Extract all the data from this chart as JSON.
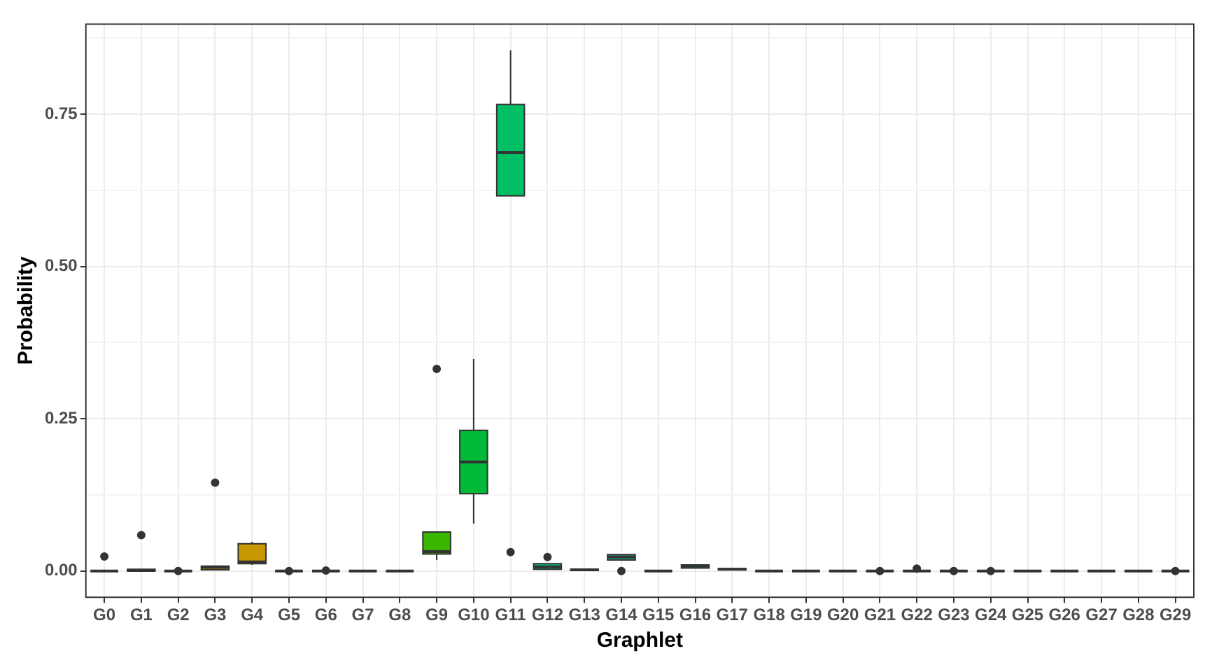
{
  "chart_data": {
    "type": "box",
    "xlabel": "Graphlet",
    "ylabel": "Probability",
    "categories": [
      "G0",
      "G1",
      "G2",
      "G3",
      "G4",
      "G5",
      "G6",
      "G7",
      "G8",
      "G9",
      "G10",
      "G11",
      "G12",
      "G13",
      "G14",
      "G15",
      "G16",
      "G17",
      "G18",
      "G19",
      "G20",
      "G21",
      "G22",
      "G23",
      "G24",
      "G25",
      "G26",
      "G27",
      "G28",
      "G29"
    ],
    "colors": [
      "#333333",
      "#f27d52",
      "#333333",
      "#de8c00",
      "#c99800",
      "#333333",
      "#333333",
      "#333333",
      "#333333",
      "#39b600",
      "#00ba38",
      "#00bf64",
      "#00c08b",
      "#00c0af",
      "#1fa589",
      "#333333",
      "#00b4f0",
      "#00a9ff",
      "#333333",
      "#333333",
      "#333333",
      "#333333",
      "#333333",
      "#333333",
      "#333333",
      "#333333",
      "#333333",
      "#333333",
      "#333333",
      "#333333"
    ],
    "boxes": [
      {
        "low": 0,
        "q1": 0,
        "median": 0,
        "q3": 0,
        "high": 0,
        "outliers": [
          0.024
        ]
      },
      {
        "low": 0,
        "q1": 0,
        "median": 0.001,
        "q3": 0.003,
        "high": 0.003,
        "outliers": [
          0.059
        ]
      },
      {
        "low": 0,
        "q1": 0,
        "median": 0,
        "q3": 0,
        "high": 0,
        "outliers": [
          0
        ]
      },
      {
        "low": 0.001,
        "q1": 0.002,
        "median": 0.006,
        "q3": 0.008,
        "high": 0.008,
        "outliers": [
          0.145
        ]
      },
      {
        "low": 0.01,
        "q1": 0.012,
        "median": 0.015,
        "q3": 0.045,
        "high": 0.048
      },
      {
        "low": 0,
        "q1": 0,
        "median": 0,
        "q3": 0,
        "high": 0,
        "outliers": [
          0
        ]
      },
      {
        "low": 0,
        "q1": 0,
        "median": 0,
        "q3": 0,
        "high": 0,
        "outliers": [
          0.001
        ]
      },
      {
        "low": 0,
        "q1": 0,
        "median": 0,
        "q3": 0,
        "high": 0
      },
      {
        "low": 0,
        "q1": 0,
        "median": 0,
        "q3": 0,
        "high": 0
      },
      {
        "low": 0.018,
        "q1": 0.028,
        "median": 0.032,
        "q3": 0.064,
        "high": 0.064,
        "outliers": [
          0.332
        ]
      },
      {
        "low": 0.078,
        "q1": 0.127,
        "median": 0.179,
        "q3": 0.231,
        "high": 0.348
      },
      {
        "low": 0.616,
        "q1": 0.616,
        "median": 0.687,
        "q3": 0.766,
        "high": 0.855,
        "outliers": [
          0.031
        ]
      },
      {
        "low": 0.003,
        "q1": 0.003,
        "median": 0.007,
        "q3": 0.012,
        "high": 0.012,
        "outliers": [
          0.023
        ]
      },
      {
        "low": 0.001,
        "q1": 0.001,
        "median": 0.002,
        "q3": 0.003,
        "high": 0.003
      },
      {
        "low": 0.018,
        "q1": 0.018,
        "median": 0.023,
        "q3": 0.027,
        "high": 0.027,
        "outliers": [
          0
        ]
      },
      {
        "low": 0,
        "q1": 0,
        "median": 0,
        "q3": 0,
        "high": 0
      },
      {
        "low": 0.005,
        "q1": 0.005,
        "median": 0.008,
        "q3": 0.01,
        "high": 0.01
      },
      {
        "low": 0.002,
        "q1": 0.002,
        "median": 0.003,
        "q3": 0.004,
        "high": 0.004
      },
      {
        "low": 0,
        "q1": 0,
        "median": 0,
        "q3": 0,
        "high": 0
      },
      {
        "low": 0,
        "q1": 0,
        "median": 0,
        "q3": 0,
        "high": 0
      },
      {
        "low": 0,
        "q1": 0,
        "median": 0,
        "q3": 0,
        "high": 0
      },
      {
        "low": 0,
        "q1": 0,
        "median": 0,
        "q3": 0,
        "high": 0,
        "outliers": [
          0
        ]
      },
      {
        "low": 0,
        "q1": 0,
        "median": 0,
        "q3": 0,
        "high": 0,
        "outliers": [
          0.004
        ]
      },
      {
        "low": 0,
        "q1": 0,
        "median": 0,
        "q3": 0,
        "high": 0,
        "outliers": [
          0
        ]
      },
      {
        "low": 0,
        "q1": 0,
        "median": 0,
        "q3": 0,
        "high": 0,
        "outliers": [
          0
        ]
      },
      {
        "low": 0,
        "q1": 0,
        "median": 0,
        "q3": 0,
        "high": 0
      },
      {
        "low": 0,
        "q1": 0,
        "median": 0,
        "q3": 0,
        "high": 0
      },
      {
        "low": 0,
        "q1": 0,
        "median": 0,
        "q3": 0,
        "high": 0
      },
      {
        "low": 0,
        "q1": 0,
        "median": 0,
        "q3": 0,
        "high": 0
      },
      {
        "low": 0,
        "q1": 0,
        "median": 0,
        "q3": 0,
        "high": 0,
        "outliers": [
          0
        ]
      }
    ],
    "ylim": [
      -0.043,
      0.898
    ],
    "yticks": [
      {
        "value": 0,
        "label": "0.00"
      },
      {
        "value": 0.125,
        "label": null
      },
      0.25,
      {
        "value": 0.375,
        "label": null
      },
      {
        "value": 0.5,
        "label": "0.50"
      },
      {
        "value": 0.625,
        "label": null
      },
      0.75,
      {
        "value": 0.875,
        "label": null
      }
    ],
    "grid": true
  }
}
